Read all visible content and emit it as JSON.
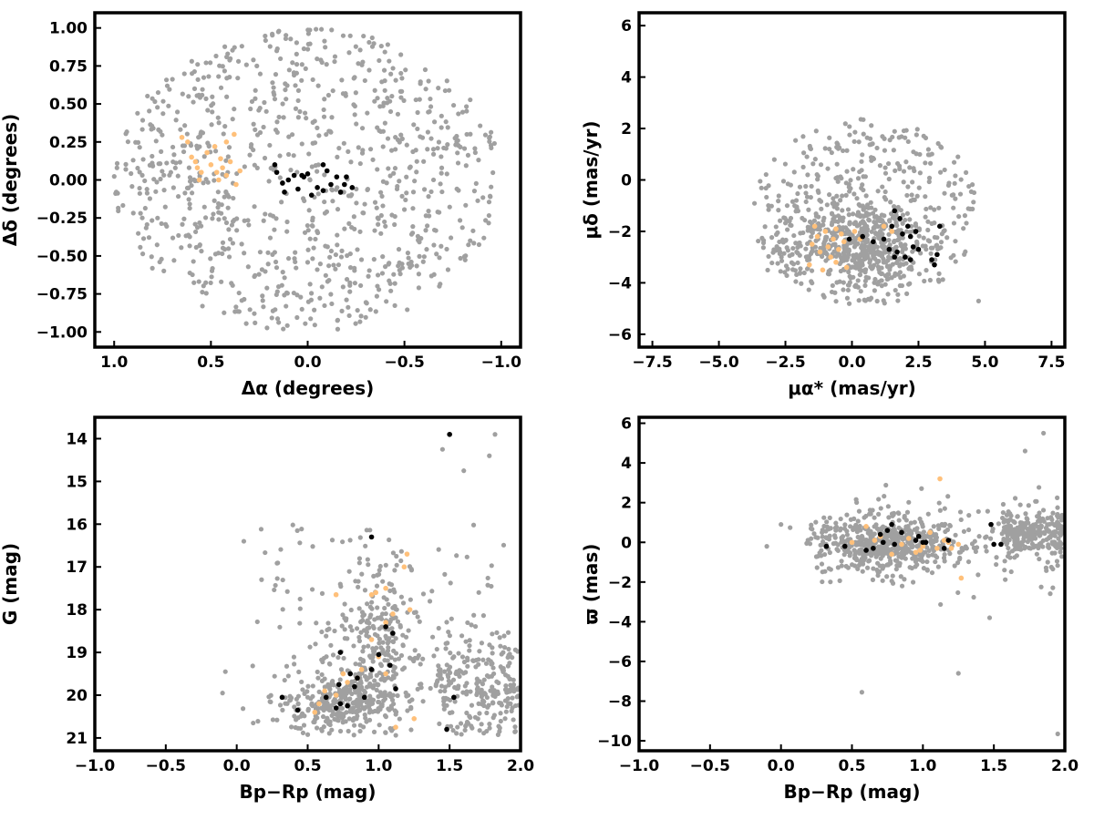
{
  "colors": {
    "field": "#a0a0a0",
    "highlight_orange": "#ffc07a",
    "highlight_black": "#000000",
    "frame": "#000000"
  },
  "chart_data": [
    {
      "id": "spatial",
      "type": "scatter",
      "xlabel": "Δα (degrees)",
      "ylabel": "Δδ (degrees)",
      "xlim": [
        1.1,
        -1.1
      ],
      "ylim": [
        -1.1,
        1.1
      ],
      "x_inverted": true,
      "xticks": [
        1.0,
        0.5,
        0.0,
        -0.5,
        -1.0
      ],
      "xtick_labels": [
        "1.0",
        "0.5",
        "0.0",
        "−0.5",
        "−1.0"
      ],
      "yticks": [
        1.0,
        0.75,
        0.5,
        0.25,
        0.0,
        -0.25,
        -0.5,
        -0.75,
        -1.0
      ],
      "ytick_labels": [
        "1.00",
        "0.75",
        "0.50",
        "0.25",
        "0.00",
        "−0.25",
        "−0.50",
        "−0.75",
        "−1.00"
      ],
      "field_distribution": {
        "shape": "disk",
        "center": [
          0,
          0
        ],
        "radius": 1.0,
        "count": 900
      },
      "series": [
        {
          "color": "orange",
          "points": [
            [
              0.65,
              0.28
            ],
            [
              0.62,
              0.25
            ],
            [
              0.58,
              0.12
            ],
            [
              0.57,
              0.08
            ],
            [
              0.55,
              0.05
            ],
            [
              0.52,
              0.18
            ],
            [
              0.5,
              0.1
            ],
            [
              0.48,
              0.22
            ],
            [
              0.47,
              0.05
            ],
            [
              0.45,
              0.14
            ],
            [
              0.44,
              0.08
            ],
            [
              0.42,
              0.25
            ],
            [
              0.42,
              0.03
            ],
            [
              0.4,
              0.12
            ],
            [
              0.38,
              0.3
            ],
            [
              0.37,
              -0.03
            ],
            [
              0.35,
              0.06
            ],
            [
              0.56,
              0.0
            ],
            [
              0.6,
              0.15
            ],
            [
              0.46,
              0.0
            ]
          ]
        },
        {
          "color": "black",
          "points": [
            [
              0.17,
              0.1
            ],
            [
              0.16,
              0.05
            ],
            [
              0.13,
              -0.02
            ],
            [
              0.12,
              -0.08
            ],
            [
              0.1,
              0.0
            ],
            [
              0.07,
              0.03
            ],
            [
              0.05,
              -0.06
            ],
            [
              0.02,
              0.02
            ],
            [
              0.0,
              0.04
            ],
            [
              -0.02,
              -0.1
            ],
            [
              -0.05,
              -0.05
            ],
            [
              -0.08,
              0.1
            ],
            [
              -0.1,
              0.06
            ],
            [
              -0.12,
              -0.03
            ],
            [
              -0.15,
              0.02
            ],
            [
              -0.17,
              -0.08
            ],
            [
              -0.19,
              -0.03
            ],
            [
              -0.2,
              0.02
            ],
            [
              -0.23,
              -0.05
            ],
            [
              -0.08,
              -0.07
            ],
            [
              0.03,
              0.03
            ]
          ]
        }
      ]
    },
    {
      "id": "proper-motion",
      "type": "scatter",
      "xlabel": "μα* (mas/yr)",
      "ylabel": "μδ (mas/yr)",
      "xlim": [
        -8,
        8
      ],
      "ylim": [
        -6.5,
        6.5
      ],
      "xticks": [
        -7.5,
        -5.0,
        -2.5,
        0.0,
        2.5,
        5.0,
        7.5
      ],
      "xtick_labels": [
        "−7.5",
        "−5.0",
        "−2.5",
        "0.0",
        "2.5",
        "5.0",
        "7.5"
      ],
      "yticks": [
        6,
        4,
        2,
        0,
        -2,
        -4,
        -6
      ],
      "ytick_labels": [
        "6",
        "4",
        "2",
        "0",
        "−2",
        "−4",
        "−6"
      ],
      "field_distribution": {
        "shape": "disk",
        "center": [
          0.5,
          -1.2
        ],
        "rx": 4.3,
        "ry": 3.6,
        "dense_center": [
          0.3,
          -2.5
        ],
        "count": 900
      },
      "series": [
        {
          "color": "orange",
          "points": [
            [
              -1.5,
              -2.5
            ],
            [
              -1.3,
              -2.2
            ],
            [
              -1.2,
              -2.8
            ],
            [
              -1.0,
              -2.0
            ],
            [
              -0.9,
              -2.6
            ],
            [
              -0.8,
              -3.0
            ],
            [
              -0.7,
              -2.3
            ],
            [
              -0.6,
              -1.9
            ],
            [
              -0.5,
              -2.7
            ],
            [
              -0.4,
              -2.1
            ],
            [
              -1.6,
              -3.3
            ],
            [
              -1.1,
              -3.5
            ],
            [
              -0.3,
              -2.4
            ],
            [
              0.1,
              -2.0
            ],
            [
              -0.2,
              -3.4
            ],
            [
              1.2,
              -1.8
            ],
            [
              1.5,
              -2.0
            ],
            [
              -1.4,
              -1.8
            ],
            [
              -0.6,
              -3.2
            ],
            [
              0.3,
              -2.3
            ]
          ]
        },
        {
          "color": "black",
          "points": [
            [
              -0.1,
              -2.3
            ],
            [
              0.4,
              -2.2
            ],
            [
              0.8,
              -2.4
            ],
            [
              1.2,
              -2.3
            ],
            [
              1.5,
              -1.8
            ],
            [
              1.6,
              -1.2
            ],
            [
              1.8,
              -1.5
            ],
            [
              1.9,
              -2.1
            ],
            [
              2.1,
              -1.8
            ],
            [
              2.2,
              -2.2
            ],
            [
              2.3,
              -2.6
            ],
            [
              2.4,
              -2.0
            ],
            [
              2.5,
              -2.7
            ],
            [
              1.7,
              -2.8
            ],
            [
              1.6,
              -3.0
            ],
            [
              2.0,
              -3.0
            ],
            [
              2.2,
              -3.1
            ],
            [
              3.0,
              -3.1
            ],
            [
              3.1,
              -3.3
            ],
            [
              3.2,
              -2.9
            ],
            [
              3.3,
              -1.8
            ],
            [
              1.4,
              -2.7
            ]
          ]
        }
      ]
    },
    {
      "id": "cmd",
      "type": "scatter",
      "xlabel": "Bp−Rp (mag)",
      "ylabel": "G (mag)",
      "xlim": [
        -1.0,
        2.0
      ],
      "ylim": [
        21.3,
        13.5
      ],
      "y_inverted": true,
      "xticks": [
        -1.0,
        -0.5,
        0.0,
        0.5,
        1.0,
        1.5,
        2.0
      ],
      "xtick_labels": [
        "−1.0",
        "−0.5",
        "0.0",
        "0.5",
        "1.0",
        "1.5",
        "2.0"
      ],
      "yticks": [
        21,
        20,
        19,
        18,
        17,
        16,
        15,
        14
      ],
      "ytick_labels": [
        "21",
        "20",
        "19",
        "18",
        "17",
        "16",
        "15",
        "14"
      ],
      "field_distribution": {
        "shape": "cmd",
        "count": 900
      },
      "series": [
        {
          "color": "orange",
          "points": [
            [
              0.55,
              20.4
            ],
            [
              0.58,
              20.2
            ],
            [
              0.62,
              19.9
            ],
            [
              0.7,
              20.0
            ],
            [
              0.75,
              19.5
            ],
            [
              0.78,
              19.7
            ],
            [
              0.85,
              19.6
            ],
            [
              0.88,
              19.4
            ],
            [
              1.0,
              19.1
            ],
            [
              1.05,
              19.5
            ],
            [
              1.12,
              20.75
            ],
            [
              1.25,
              20.55
            ],
            [
              1.1,
              18.1
            ],
            [
              0.95,
              17.65
            ],
            [
              0.98,
              17.6
            ],
            [
              1.05,
              17.5
            ],
            [
              1.18,
              17.0
            ],
            [
              1.2,
              16.7
            ],
            [
              0.7,
              17.65
            ],
            [
              1.22,
              18.0
            ],
            [
              0.95,
              18.7
            ],
            [
              1.05,
              18.3
            ]
          ]
        },
        {
          "color": "black",
          "points": [
            [
              0.32,
              20.05
            ],
            [
              0.43,
              20.35
            ],
            [
              0.63,
              20.05
            ],
            [
              0.72,
              19.75
            ],
            [
              0.73,
              20.2
            ],
            [
              0.78,
              20.25
            ],
            [
              0.8,
              19.5
            ],
            [
              0.85,
              19.6
            ],
            [
              0.9,
              20.05
            ],
            [
              0.95,
              19.4
            ],
            [
              1.0,
              19.05
            ],
            [
              1.05,
              18.4
            ],
            [
              1.08,
              19.3
            ],
            [
              1.12,
              19.85
            ],
            [
              1.1,
              18.55
            ],
            [
              0.95,
              16.3
            ],
            [
              1.48,
              20.8
            ],
            [
              1.53,
              20.05
            ],
            [
              1.5,
              13.9
            ],
            [
              0.73,
              19.0
            ],
            [
              0.7,
              20.3
            ],
            [
              0.83,
              19.8
            ]
          ]
        }
      ]
    },
    {
      "id": "parallax",
      "type": "scatter",
      "xlabel": "Bp−Rp (mag)",
      "ylabel": "ϖ (mas)",
      "xlim": [
        -1.0,
        2.0
      ],
      "ylim": [
        -10.5,
        6.3
      ],
      "xticks": [
        -1.0,
        -0.5,
        0.0,
        0.5,
        1.0,
        1.5,
        2.0
      ],
      "xtick_labels": [
        "−1.0",
        "−0.5",
        "0.0",
        "0.5",
        "1.0",
        "1.5",
        "2.0"
      ],
      "yticks": [
        6,
        4,
        2,
        0,
        -2,
        -4,
        -6,
        -8,
        -10
      ],
      "ytick_labels": [
        "6",
        "4",
        "2",
        "0",
        "−2",
        "−4",
        "−6",
        "−8",
        "−10"
      ],
      "field_distribution": {
        "shape": "parallax",
        "count": 900
      },
      "series": [
        {
          "color": "orange",
          "points": [
            [
              0.5,
              0.0
            ],
            [
              0.6,
              0.8
            ],
            [
              0.7,
              0.3
            ],
            [
              0.78,
              -0.6
            ],
            [
              0.85,
              -0.1
            ],
            [
              0.95,
              -0.5
            ],
            [
              1.0,
              -0.2
            ],
            [
              1.05,
              0.5
            ],
            [
              1.1,
              -0.3
            ],
            [
              1.15,
              0.1
            ],
            [
              1.2,
              -0.3
            ],
            [
              1.25,
              -0.1
            ],
            [
              1.27,
              -1.8
            ],
            [
              1.12,
              3.2
            ],
            [
              0.98,
              -0.4
            ],
            [
              0.9,
              0.2
            ],
            [
              1.18,
              0.0
            ],
            [
              0.66,
              0.1
            ]
          ]
        },
        {
          "color": "black",
          "points": [
            [
              0.32,
              -0.2
            ],
            [
              0.45,
              -0.2
            ],
            [
              0.6,
              -0.4
            ],
            [
              0.65,
              -0.3
            ],
            [
              0.7,
              0.4
            ],
            [
              0.72,
              0.0
            ],
            [
              0.75,
              0.6
            ],
            [
              0.78,
              0.9
            ],
            [
              0.8,
              -0.1
            ],
            [
              0.95,
              0.1
            ],
            [
              0.97,
              0.3
            ],
            [
              1.0,
              0.0
            ],
            [
              1.02,
              0.0
            ],
            [
              1.15,
              -0.3
            ],
            [
              1.18,
              0.1
            ],
            [
              1.48,
              0.9
            ],
            [
              1.5,
              -0.1
            ],
            [
              1.55,
              -0.1
            ],
            [
              0.85,
              0.5
            ]
          ]
        }
      ]
    }
  ]
}
